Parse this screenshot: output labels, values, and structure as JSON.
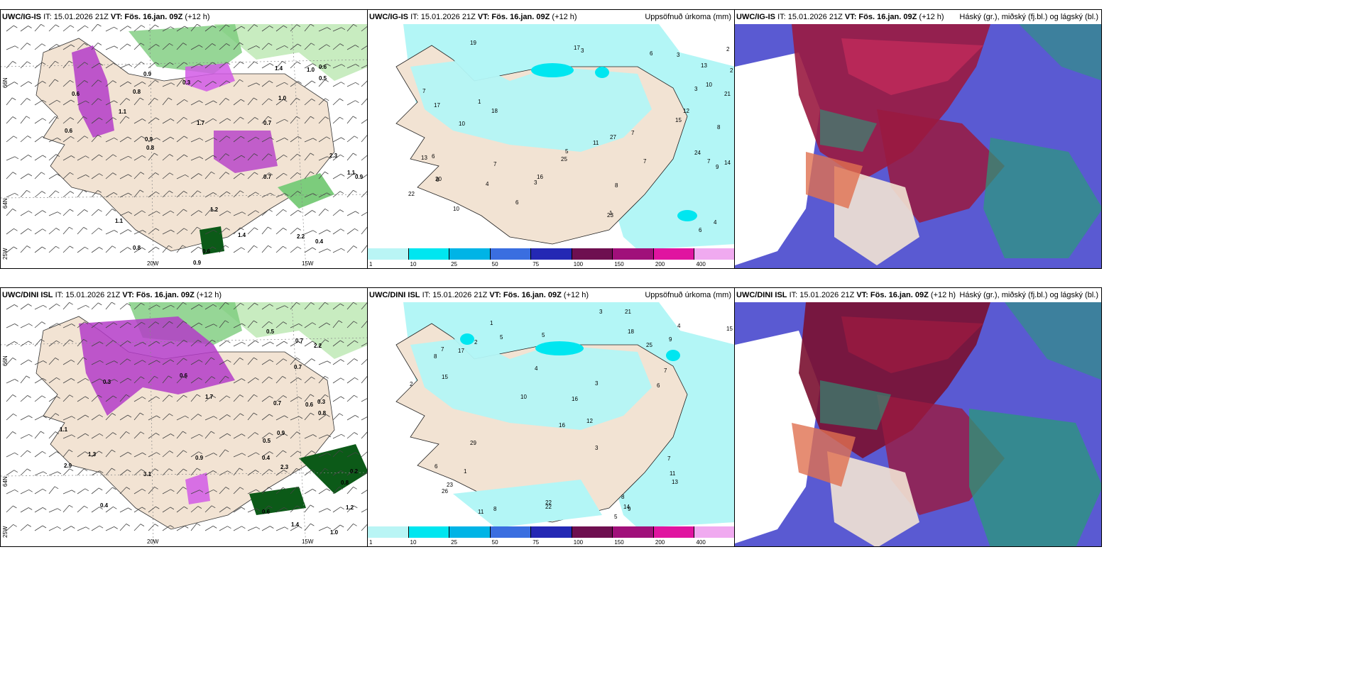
{
  "rows": [
    {
      "model": "UWC/IG-IS",
      "it": "IT: 15.01.2026 21Z",
      "vt": "VT: Fös. 16.jan. 09Z",
      "lead": "(+12 h)",
      "precip_title": "Uppsöfnuð úrkoma (mm)",
      "cloud_title": "Háský (gr.), miðský (fj.bl.) og lágský (bl.)",
      "lat_labels": [
        "66N",
        "64N",
        "25W"
      ],
      "lon_labels": [
        "20W",
        "15W"
      ],
      "wind_labels": [
        "0.6",
        "0.8",
        "0.7",
        "0.6",
        "1.0",
        "0.9",
        "0.7",
        "0.8",
        "0.6",
        "0.9",
        "1.1",
        "0.9",
        "1.0",
        "1.1",
        "0.6",
        "0.8",
        "0.9",
        "0.3",
        "0.4",
        "1.4",
        "2.2",
        "2.3",
        "1.7",
        "1.2",
        "1.4",
        "1.1",
        "0.5"
      ],
      "precip_labels": [
        "1",
        "8",
        "7",
        "6",
        "7",
        "8",
        "6",
        "7",
        "10",
        "19",
        "17",
        "22",
        "27",
        "21",
        "24",
        "25",
        "14",
        "13",
        "20",
        "12",
        "13",
        "3",
        "4",
        "7",
        "2",
        "11",
        "3",
        "10",
        "6",
        "7",
        "9",
        "15",
        "5",
        "16",
        "17",
        "23",
        "8",
        "4",
        "3",
        "2",
        "1",
        "10",
        "6",
        "3",
        "18"
      ]
    },
    {
      "model": "UWC/DINI ISL",
      "it": "IT: 15.01.2026 21Z",
      "vt": "VT: Fös. 16.jan. 09Z",
      "lead": "(+12 h)",
      "precip_title": "Uppsöfnuð úrkoma (mm)",
      "cloud_title": "Háský (gr.), miðský (fj.bl.) og lágský (bl.)",
      "lat_labels": [
        "66N",
        "64N",
        "25W"
      ],
      "lon_labels": [
        "20W",
        "15W"
      ],
      "wind_labels": [
        "0.4",
        "0.2",
        "0.6",
        "0.8",
        "0.6",
        "0.7",
        "0.3",
        "1.7",
        "1.2",
        "1.4",
        "0.9",
        "0.5",
        "2.9",
        "2.3",
        "3.1",
        "1.0",
        "2.2",
        "1.3",
        "0.7",
        "0.6",
        "0.9",
        "1.1",
        "0.7",
        "0.5",
        "0.8",
        "0.4",
        "0.3"
      ],
      "precip_labels": [
        "1",
        "7",
        "14",
        "8",
        "9",
        "26",
        "13",
        "16",
        "18",
        "25",
        "23",
        "21",
        "29",
        "15",
        "22",
        "12",
        "6",
        "5",
        "7",
        "4",
        "3",
        "11",
        "10",
        "8",
        "2",
        "15",
        "4",
        "5",
        "3",
        "22",
        "17",
        "16",
        "11",
        "7",
        "6",
        "8",
        "5",
        "9",
        "1",
        "2",
        "3"
      ]
    }
  ],
  "colorbar": {
    "ticks": [
      "1",
      "10",
      "25",
      "50",
      "75",
      "100",
      "150",
      "200",
      "400"
    ],
    "colors": [
      "#b9f5f5",
      "#00e6f0",
      "#00b4e6",
      "#3a6ee0",
      "#2428b4",
      "#6e0f50",
      "#a0107a",
      "#e014a0",
      "#f0aaf0"
    ]
  },
  "colors": {
    "land": "#f2e3d3",
    "precip_light": "#b3f6f6",
    "green_light": "#c8ecc0",
    "green_mid": "#7ccc7c",
    "green_dark": "#0c5a18",
    "purple": "#b43cc8",
    "magenta": "#d25ae6",
    "cloud_blue": "#5a5ad2",
    "cloud_red": "#9a1a40",
    "cloud_green": "#2a9a7a"
  }
}
